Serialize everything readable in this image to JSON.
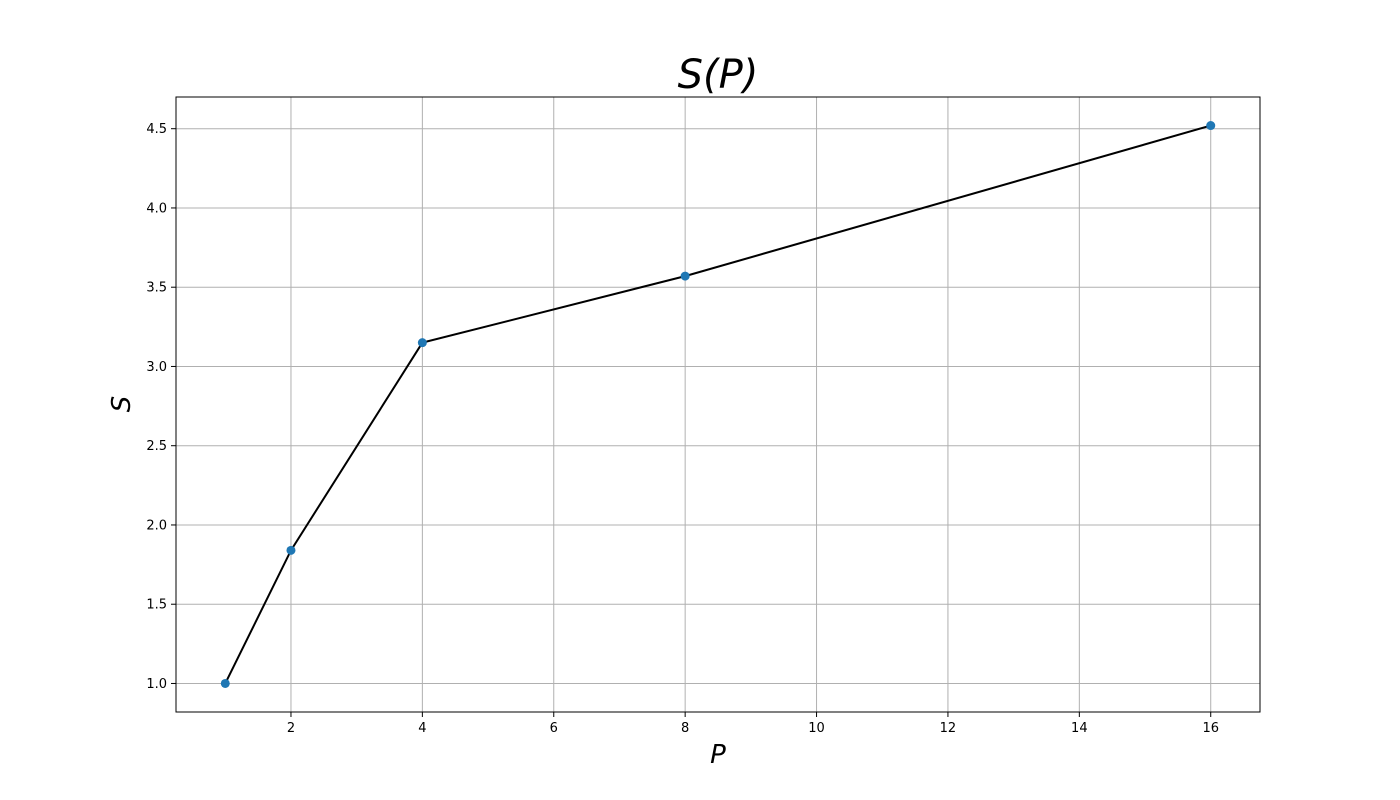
{
  "chart_data": {
    "type": "line",
    "title": "S(P)",
    "xlabel": "P",
    "ylabel": "S",
    "x": [
      1,
      2,
      4,
      8,
      16
    ],
    "series": [
      {
        "values": [
          1.0,
          1.84,
          3.15,
          3.57,
          4.52
        ]
      }
    ],
    "xlim": [
      0.25,
      16.75
    ],
    "ylim": [
      0.82,
      4.7
    ],
    "xticks": [
      2,
      4,
      6,
      8,
      10,
      12,
      14,
      16
    ],
    "yticks": [
      1.0,
      1.5,
      2.0,
      2.5,
      3.0,
      3.5,
      4.0,
      4.5
    ],
    "xtick_labels": [
      "2",
      "4",
      "6",
      "8",
      "10",
      "12",
      "14",
      "16"
    ],
    "ytick_labels": [
      "1.0",
      "1.5",
      "2.0",
      "2.5",
      "3.0",
      "3.5",
      "4.0",
      "4.5"
    ],
    "grid": true,
    "colors": {
      "line": "#000000",
      "marker": "#1f77b4",
      "grid": "#b0b0b0"
    }
  }
}
